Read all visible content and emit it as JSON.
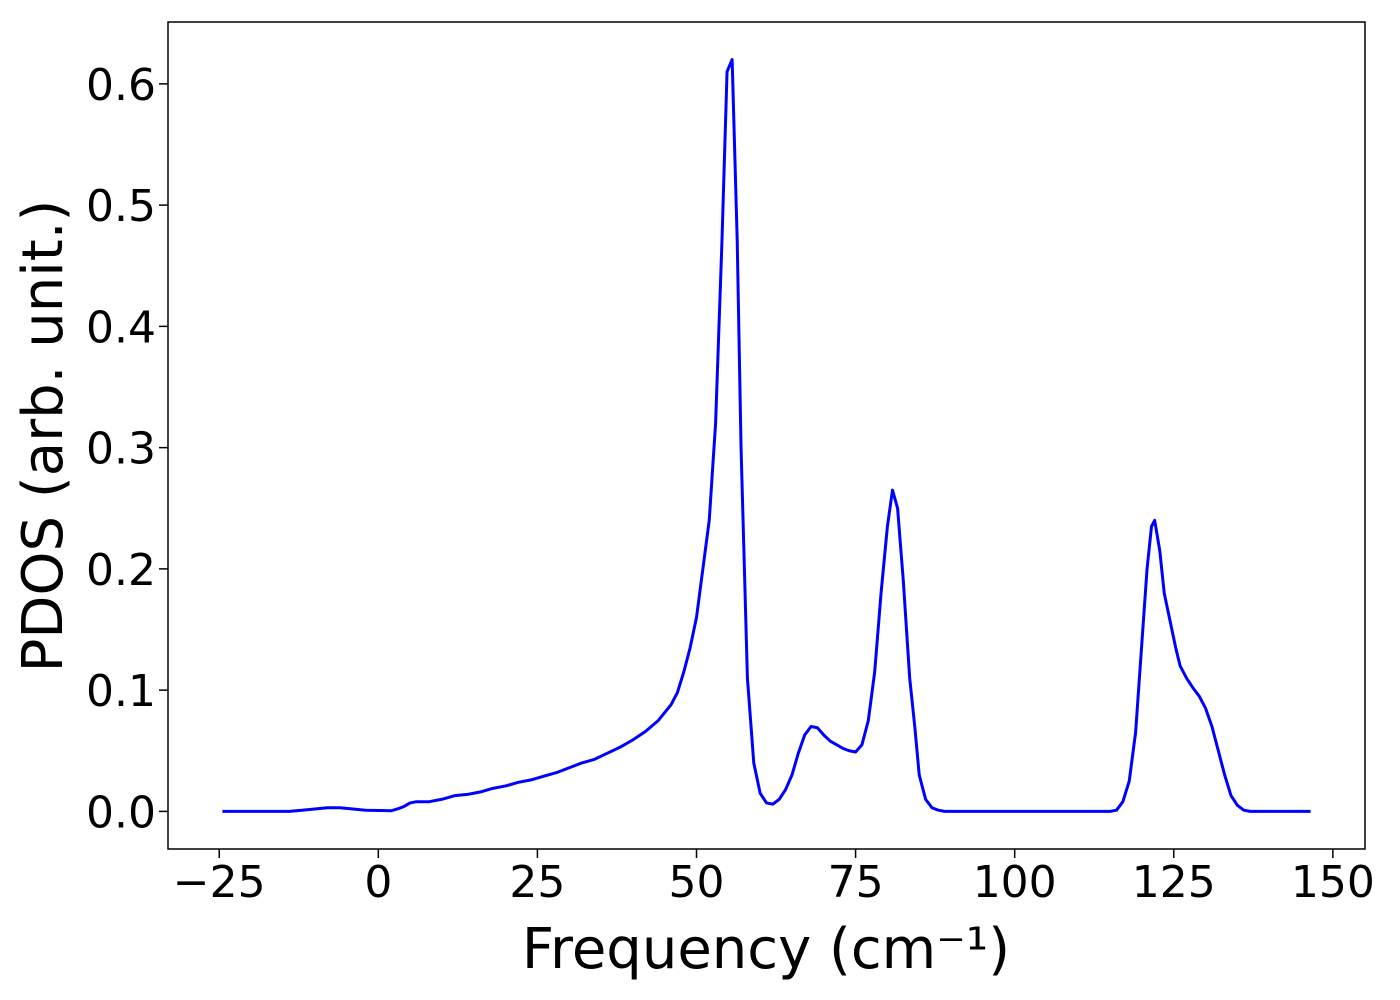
{
  "chart_data": {
    "type": "line",
    "xlabel": "Frequency (cm⁻¹)",
    "ylabel": "PDOS (arb. unit.)",
    "color": "#0000ff",
    "x": [
      -24.5,
      -14,
      -12,
      -10,
      -8,
      -6,
      -4,
      -2,
      0,
      2,
      3,
      4,
      5,
      6,
      8,
      10,
      12,
      14,
      16,
      18,
      20,
      22,
      24,
      26,
      28,
      30,
      32,
      34,
      36,
      38,
      40,
      42,
      44,
      46,
      47,
      48,
      49,
      50,
      51,
      52,
      53,
      54,
      54.8,
      55.6,
      56.4,
      57,
      58,
      59,
      60,
      61,
      62,
      63,
      64,
      65,
      66,
      67,
      68,
      69,
      70,
      71,
      72,
      73,
      74,
      75,
      76,
      77,
      78,
      79,
      80,
      80.8,
      81.6,
      82.5,
      83.5,
      84.3,
      85,
      86,
      87,
      88,
      89,
      115,
      116,
      117,
      118,
      119,
      120,
      120.8,
      121.5,
      122,
      122.8,
      123.5,
      124.5,
      125.3,
      126,
      127,
      128,
      129,
      130,
      131,
      132,
      133,
      134,
      135,
      136,
      137,
      146.5
    ],
    "values": [
      0,
      0,
      0.001,
      0.002,
      0.003,
      0.003,
      0.002,
      0.001,
      0.0008,
      0.0005,
      0.002,
      0.004,
      0.007,
      0.008,
      0.008,
      0.01,
      0.013,
      0.014,
      0.016,
      0.019,
      0.021,
      0.024,
      0.026,
      0.029,
      0.032,
      0.036,
      0.04,
      0.043,
      0.048,
      0.053,
      0.059,
      0.066,
      0.075,
      0.088,
      0.098,
      0.115,
      0.135,
      0.16,
      0.2,
      0.24,
      0.32,
      0.47,
      0.61,
      0.62,
      0.47,
      0.3,
      0.11,
      0.04,
      0.015,
      0.007,
      0.006,
      0.01,
      0.018,
      0.03,
      0.048,
      0.063,
      0.07,
      0.069,
      0.063,
      0.058,
      0.055,
      0.052,
      0.05,
      0.049,
      0.055,
      0.075,
      0.115,
      0.18,
      0.235,
      0.265,
      0.25,
      0.19,
      0.11,
      0.07,
      0.03,
      0.01,
      0.003,
      0.001,
      0,
      0,
      0.001,
      0.008,
      0.025,
      0.065,
      0.14,
      0.2,
      0.235,
      0.24,
      0.215,
      0.18,
      0.155,
      0.135,
      0.12,
      0.11,
      0.102,
      0.095,
      0.085,
      0.07,
      0.05,
      0.03,
      0.013,
      0.005,
      0.001,
      0,
      0
    ],
    "xlim": [
      -33.05,
      155.05
    ],
    "ylim": [
      -0.031,
      0.651
    ],
    "xticks": [
      {
        "value": -25,
        "label": "−25"
      },
      0,
      25,
      50,
      75,
      100,
      125,
      150
    ],
    "yticks": [
      {
        "value": 0,
        "label": "0.0"
      },
      0.1,
      0.2,
      0.3,
      0.4,
      0.5,
      0.6
    ]
  }
}
